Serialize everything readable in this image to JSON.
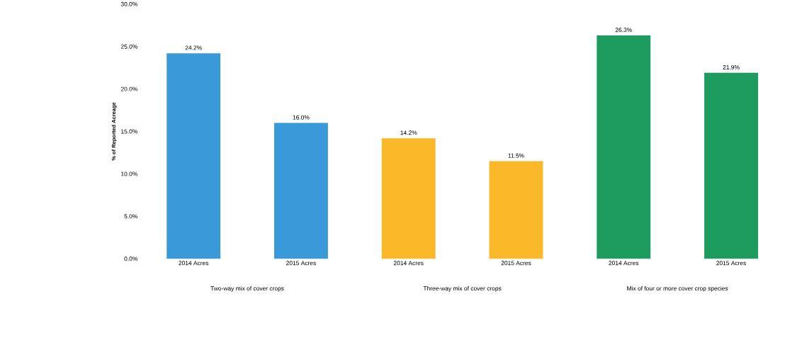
{
  "chart_data": {
    "type": "bar",
    "ylabel": "% of Reported Acreage",
    "categories": [
      "2014 Acres",
      "2015 Acres",
      "2014 Acres",
      "2015 Acres",
      "2014 Acres",
      "2015 Acres"
    ],
    "values": [
      24.2,
      16.0,
      14.2,
      11.5,
      26.3,
      21.9
    ],
    "value_labels": [
      "24.2%",
      "16.0%",
      "14.2%",
      "11.5%",
      "26.3%",
      "21.9%"
    ],
    "colors": [
      "#3a9ad9",
      "#3a9ad9",
      "#fbb829",
      "#fbb829",
      "#1e9b5e",
      "#1e9b5e"
    ],
    "ylim": [
      0,
      30
    ],
    "yticks": [
      {
        "value": 0,
        "label": "0.0%"
      },
      {
        "value": 5,
        "label": "5.0%"
      },
      {
        "value": 10,
        "label": "10.0%"
      },
      {
        "value": 15,
        "label": "15.0%"
      },
      {
        "value": 20,
        "label": "20.0%"
      },
      {
        "value": 25,
        "label": "25.0%"
      },
      {
        "value": 30,
        "label": "30.0%"
      }
    ],
    "annotations": [
      "Two-way mix of cover crops",
      "Three-way mix of cover crops",
      "Mix of four or more cover crop species"
    ]
  }
}
